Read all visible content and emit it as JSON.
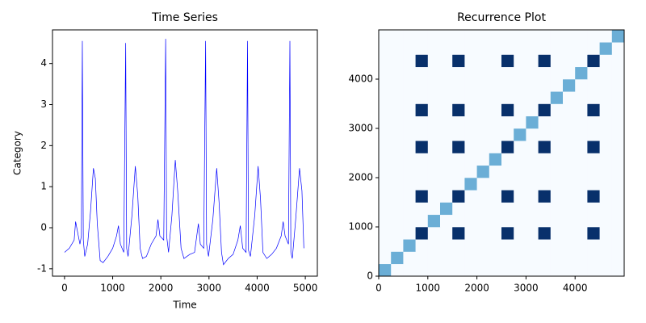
{
  "chart_data": [
    {
      "type": "line",
      "title": "Time Series",
      "xlabel": "Time",
      "ylabel": "Category",
      "x": [
        0,
        100,
        200,
        230,
        270,
        320,
        350,
        370,
        390,
        420,
        480,
        540,
        600,
        640,
        680,
        740,
        800,
        900,
        1000,
        1080,
        1120,
        1160,
        1230,
        1270,
        1290,
        1320,
        1400,
        1470,
        1520,
        1570,
        1620,
        1700,
        1800,
        1900,
        1940,
        1980,
        2060,
        2100,
        2120,
        2160,
        2230,
        2300,
        2350,
        2420,
        2480,
        2600,
        2700,
        2780,
        2820,
        2890,
        2930,
        2950,
        2990,
        3080,
        3160,
        3210,
        3260,
        3300,
        3400,
        3500,
        3600,
        3650,
        3700,
        3770,
        3800,
        3820,
        3860,
        3950,
        4020,
        4070,
        4120,
        4200,
        4300,
        4400,
        4500,
        4540,
        4580,
        4650,
        4680,
        4700,
        4730,
        4800,
        4880,
        4930,
        4970
      ],
      "series": [
        {
          "color": "#0000ff",
          "values": [
            -0.6,
            -0.5,
            -0.3,
            0.15,
            -0.1,
            -0.4,
            -0.2,
            4.55,
            -0.3,
            -0.7,
            -0.4,
            0.4,
            1.45,
            1.2,
            0.1,
            -0.8,
            -0.85,
            -0.7,
            -0.5,
            -0.2,
            0.05,
            -0.4,
            -0.6,
            4.5,
            -0.5,
            -0.7,
            0.3,
            1.5,
            0.8,
            -0.5,
            -0.75,
            -0.7,
            -0.4,
            -0.2,
            0.2,
            -0.2,
            -0.3,
            4.6,
            -0.2,
            -0.6,
            0.3,
            1.65,
            0.9,
            -0.5,
            -0.75,
            -0.65,
            -0.6,
            0.1,
            -0.4,
            -0.5,
            4.55,
            -0.4,
            -0.7,
            0.2,
            1.45,
            0.6,
            -0.6,
            -0.9,
            -0.75,
            -0.65,
            -0.3,
            0.05,
            -0.5,
            -0.6,
            4.55,
            -0.55,
            -0.7,
            0.3,
            1.5,
            0.7,
            -0.6,
            -0.75,
            -0.65,
            -0.5,
            -0.2,
            0.15,
            -0.2,
            -0.4,
            4.55,
            -0.6,
            -0.75,
            0.2,
            1.45,
            0.9,
            -0.5
          ]
        }
      ],
      "xlim": [
        -250,
        5250
      ],
      "xticks": [
        0,
        1000,
        2000,
        3000,
        4000,
        5000
      ],
      "ylim": [
        -1.18,
        4.82
      ],
      "yticks": [
        -1,
        0,
        1,
        2,
        3,
        4
      ]
    },
    {
      "type": "heatmap",
      "title": "Recurrence Plot",
      "xlim": [
        0,
        5000
      ],
      "xticks": [
        0,
        1000,
        2000,
        3000,
        4000
      ],
      "ylim": [
        0,
        5000
      ],
      "yticks": [
        0,
        1000,
        2000,
        3000,
        4000
      ],
      "colormap": [
        "#f7fbff",
        "#6baed6",
        "#08306b"
      ],
      "z": [
        [
          1,
          0,
          0,
          0,
          0,
          0,
          0,
          0,
          0,
          0,
          0,
          0,
          0,
          0,
          0,
          0,
          0,
          0,
          0,
          0
        ],
        [
          0,
          1,
          0,
          0,
          0,
          0,
          0,
          0,
          0,
          0,
          0,
          0,
          0,
          0,
          0,
          0,
          0,
          0,
          0,
          0
        ],
        [
          0,
          0,
          1,
          0,
          0,
          0,
          0,
          0,
          0,
          0,
          0,
          0,
          0,
          0,
          0,
          0,
          0,
          0,
          0,
          0
        ],
        [
          0,
          0,
          0,
          2,
          0,
          0,
          2,
          0,
          0,
          0,
          2,
          0,
          0,
          2,
          0,
          0,
          0,
          2,
          0,
          0
        ],
        [
          0,
          0,
          0,
          0,
          1,
          0,
          0,
          0,
          0,
          0,
          0,
          0,
          0,
          0,
          0,
          0,
          0,
          0,
          0,
          0
        ],
        [
          0,
          0,
          0,
          0,
          0,
          1,
          0,
          0,
          0,
          0,
          0,
          0,
          0,
          0,
          0,
          0,
          0,
          0,
          0,
          0
        ],
        [
          0,
          0,
          0,
          2,
          0,
          0,
          2,
          0,
          0,
          0,
          2,
          0,
          0,
          2,
          0,
          0,
          0,
          2,
          0,
          0
        ],
        [
          0,
          0,
          0,
          0,
          0,
          0,
          0,
          1,
          0,
          0,
          0,
          0,
          0,
          0,
          0,
          0,
          0,
          0,
          0,
          0
        ],
        [
          0,
          0,
          0,
          0,
          0,
          0,
          0,
          0,
          1,
          0,
          0,
          0,
          0,
          0,
          0,
          0,
          0,
          0,
          0,
          0
        ],
        [
          0,
          0,
          0,
          0,
          0,
          0,
          0,
          0,
          0,
          1,
          0,
          0,
          0,
          0,
          0,
          0,
          0,
          0,
          0,
          0
        ],
        [
          0,
          0,
          0,
          2,
          0,
          0,
          2,
          0,
          0,
          0,
          2,
          0,
          0,
          2,
          0,
          0,
          0,
          2,
          0,
          0
        ],
        [
          0,
          0,
          0,
          0,
          0,
          0,
          0,
          0,
          0,
          0,
          0,
          1,
          0,
          0,
          0,
          0,
          0,
          0,
          0,
          0
        ],
        [
          0,
          0,
          0,
          0,
          0,
          0,
          0,
          0,
          0,
          0,
          0,
          0,
          1,
          0,
          0,
          0,
          0,
          0,
          0,
          0
        ],
        [
          0,
          0,
          0,
          2,
          0,
          0,
          2,
          0,
          0,
          0,
          2,
          0,
          0,
          2,
          0,
          0,
          0,
          2,
          0,
          0
        ],
        [
          0,
          0,
          0,
          0,
          0,
          0,
          0,
          0,
          0,
          0,
          0,
          0,
          0,
          0,
          1,
          0,
          0,
          0,
          0,
          0
        ],
        [
          0,
          0,
          0,
          0,
          0,
          0,
          0,
          0,
          0,
          0,
          0,
          0,
          0,
          0,
          0,
          1,
          0,
          0,
          0,
          0
        ],
        [
          0,
          0,
          0,
          0,
          0,
          0,
          0,
          0,
          0,
          0,
          0,
          0,
          0,
          0,
          0,
          0,
          1,
          0,
          0,
          0
        ],
        [
          0,
          0,
          0,
          2,
          0,
          0,
          2,
          0,
          0,
          0,
          2,
          0,
          0,
          2,
          0,
          0,
          0,
          2,
          0,
          0
        ],
        [
          0,
          0,
          0,
          0,
          0,
          0,
          0,
          0,
          0,
          0,
          0,
          0,
          0,
          0,
          0,
          0,
          0,
          0,
          1,
          0
        ],
        [
          0,
          0,
          0,
          0,
          0,
          0,
          0,
          0,
          0,
          0,
          0,
          0,
          0,
          0,
          0,
          0,
          0,
          0,
          0,
          1
        ]
      ]
    }
  ]
}
